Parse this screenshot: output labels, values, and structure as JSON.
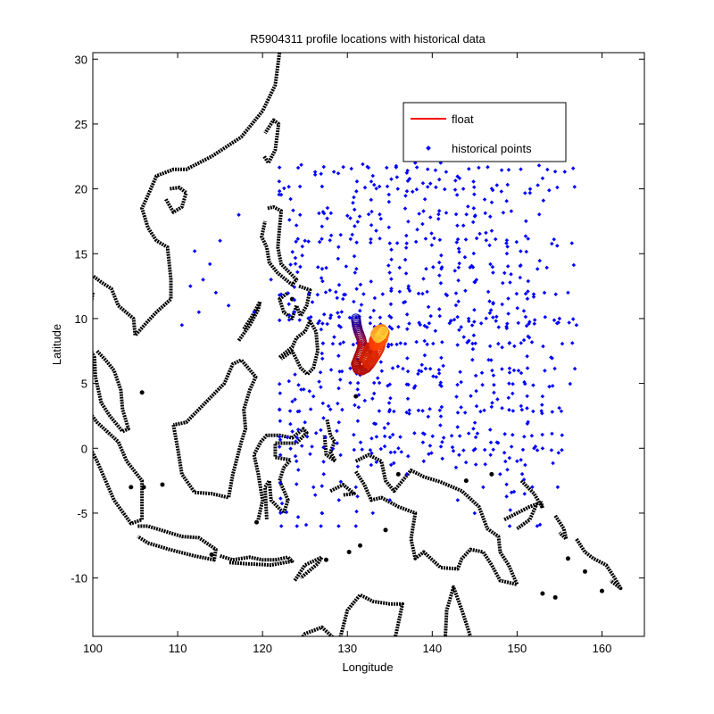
{
  "chart_data": {
    "type": "scatter",
    "title": "R5904311 profile locations with historical data",
    "xlabel": "Longitude",
    "ylabel": "Latitude",
    "xlim": [
      100,
      165
    ],
    "ylim": [
      -14.5,
      30.5
    ],
    "x_ticks": [
      100,
      110,
      120,
      130,
      140,
      150,
      160
    ],
    "y_ticks": [
      30,
      25,
      20,
      15,
      10,
      5,
      0,
      -5,
      -10
    ],
    "grid": false,
    "legend_position": "top-right",
    "legend": [
      {
        "label": "float",
        "color": "#ff0000",
        "marker": "line"
      },
      {
        "label": "historical points",
        "color": "#0000ff",
        "marker": "dot"
      }
    ],
    "colors": {
      "historical": "#0000ff",
      "coast": "#000000",
      "float_start": "#0000ff",
      "float_mid": "#ff0000",
      "float_end": "#ffff00"
    },
    "series": [
      {
        "name": "float",
        "path": [
          [
            131.0,
            10.0
          ],
          [
            131.1,
            9.5
          ],
          [
            131.3,
            9.0
          ],
          [
            131.6,
            8.5
          ],
          [
            131.8,
            8.0
          ],
          [
            131.6,
            7.5
          ],
          [
            131.3,
            7.0
          ],
          [
            131.0,
            6.5
          ],
          [
            131.2,
            6.1
          ],
          [
            131.7,
            6.0
          ],
          [
            132.3,
            6.2
          ],
          [
            132.8,
            6.6
          ],
          [
            133.1,
            7.1
          ],
          [
            133.0,
            7.6
          ],
          [
            132.6,
            7.8
          ],
          [
            132.3,
            7.4
          ],
          [
            132.1,
            6.9
          ],
          [
            132.4,
            6.5
          ],
          [
            132.9,
            6.7
          ],
          [
            133.4,
            7.2
          ],
          [
            133.8,
            7.7
          ],
          [
            134.0,
            8.2
          ],
          [
            133.8,
            8.6
          ],
          [
            133.4,
            8.7
          ],
          [
            133.1,
            8.3
          ],
          [
            133.2,
            7.9
          ],
          [
            133.7,
            8.0
          ],
          [
            134.2,
            8.4
          ],
          [
            134.4,
            8.9
          ],
          [
            134.1,
            9.2
          ],
          [
            133.6,
            9.1
          ],
          [
            133.3,
            8.8
          ],
          [
            133.6,
            8.5
          ],
          [
            134.0,
            8.7
          ],
          [
            134.3,
            9.1
          ]
        ]
      },
      {
        "name": "historical points",
        "lon_lines": [
          122,
          124,
          127,
          129,
          131,
          133,
          135,
          137,
          139,
          141,
          143,
          145,
          147,
          149,
          151
        ],
        "lat_lines": [
          21.5,
          20,
          18,
          16,
          14,
          12,
          10,
          9.5,
          8,
          6,
          5,
          3,
          1,
          0
        ],
        "scattered": [
          [
            110.5,
            9.5
          ],
          [
            111.5,
            12.5
          ],
          [
            112.5,
            10.5
          ],
          [
            113,
            13
          ],
          [
            114.5,
            12
          ],
          [
            113.8,
            14.2
          ],
          [
            115,
            16
          ],
          [
            116,
            11
          ],
          [
            117.2,
            18
          ],
          [
            112,
            15.2
          ],
          [
            119,
            10.5
          ],
          [
            126,
            4
          ],
          [
            128,
            3
          ],
          [
            129,
            2
          ],
          [
            125,
            2
          ],
          [
            124,
            -1
          ],
          [
            126,
            -3
          ],
          [
            127,
            -5
          ],
          [
            129,
            -4
          ],
          [
            131,
            -3
          ],
          [
            133,
            -5
          ],
          [
            135,
            -4
          ],
          [
            137,
            -2
          ],
          [
            139,
            -1
          ],
          [
            143,
            -4
          ],
          [
            145,
            -5
          ],
          [
            146,
            -3
          ],
          [
            148,
            -2
          ],
          [
            150,
            -1
          ],
          [
            152,
            0
          ],
          [
            154,
            7
          ],
          [
            155,
            10
          ],
          [
            156,
            12
          ],
          [
            157,
            9.5
          ],
          [
            153,
            4
          ],
          [
            141,
            22
          ],
          [
            138,
            22
          ],
          [
            133,
            21
          ],
          [
            125,
            16
          ],
          [
            121,
            13
          ]
        ]
      }
    ]
  }
}
